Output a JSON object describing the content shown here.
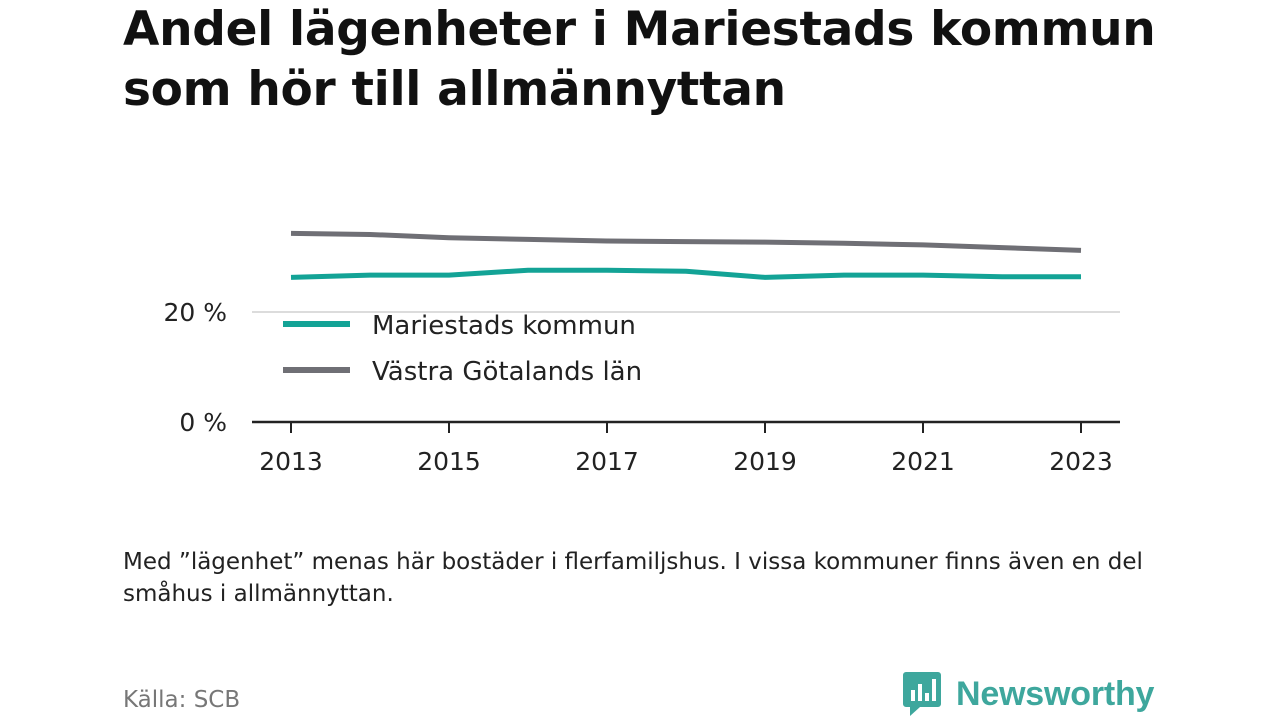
{
  "title": "Andel lägenheter i Mariestads kommun som hör till allmännyttan",
  "note": "Med ”lägenhet” menas här bostäder i flerfamiljshus. I vissa kommuner finns även en del småhus i allmännyttan.",
  "source": "Källa: SCB",
  "logo": {
    "text": "Newsworthy",
    "icon": "newsworthy-chat-bars-icon",
    "color": "#3ea79d"
  },
  "chart_data": {
    "type": "line",
    "title": "Andel lägenheter i Mariestads kommun som hör till allmännyttan",
    "xlabel": "",
    "ylabel": "",
    "x": [
      2013,
      2014,
      2015,
      2016,
      2017,
      2018,
      2019,
      2020,
      2021,
      2022,
      2023
    ],
    "xticks": [
      "2013",
      "2015",
      "2017",
      "2019",
      "2021",
      "2023"
    ],
    "yticks": [
      "0 %",
      "20 %"
    ],
    "ylim": [
      0,
      40
    ],
    "grid": "horizontal",
    "legend": "inside-left",
    "series": [
      {
        "name": "Mariestads kommun",
        "color": "#13a396",
        "values": [
          26.3,
          26.7,
          26.7,
          27.6,
          27.6,
          27.4,
          26.3,
          26.7,
          26.7,
          26.4,
          26.4
        ]
      },
      {
        "name": "Västra Götalands län",
        "color": "#6f6f75",
        "values": [
          34.3,
          34.1,
          33.5,
          33.2,
          32.9,
          32.8,
          32.7,
          32.5,
          32.2,
          31.7,
          31.2
        ]
      }
    ]
  }
}
